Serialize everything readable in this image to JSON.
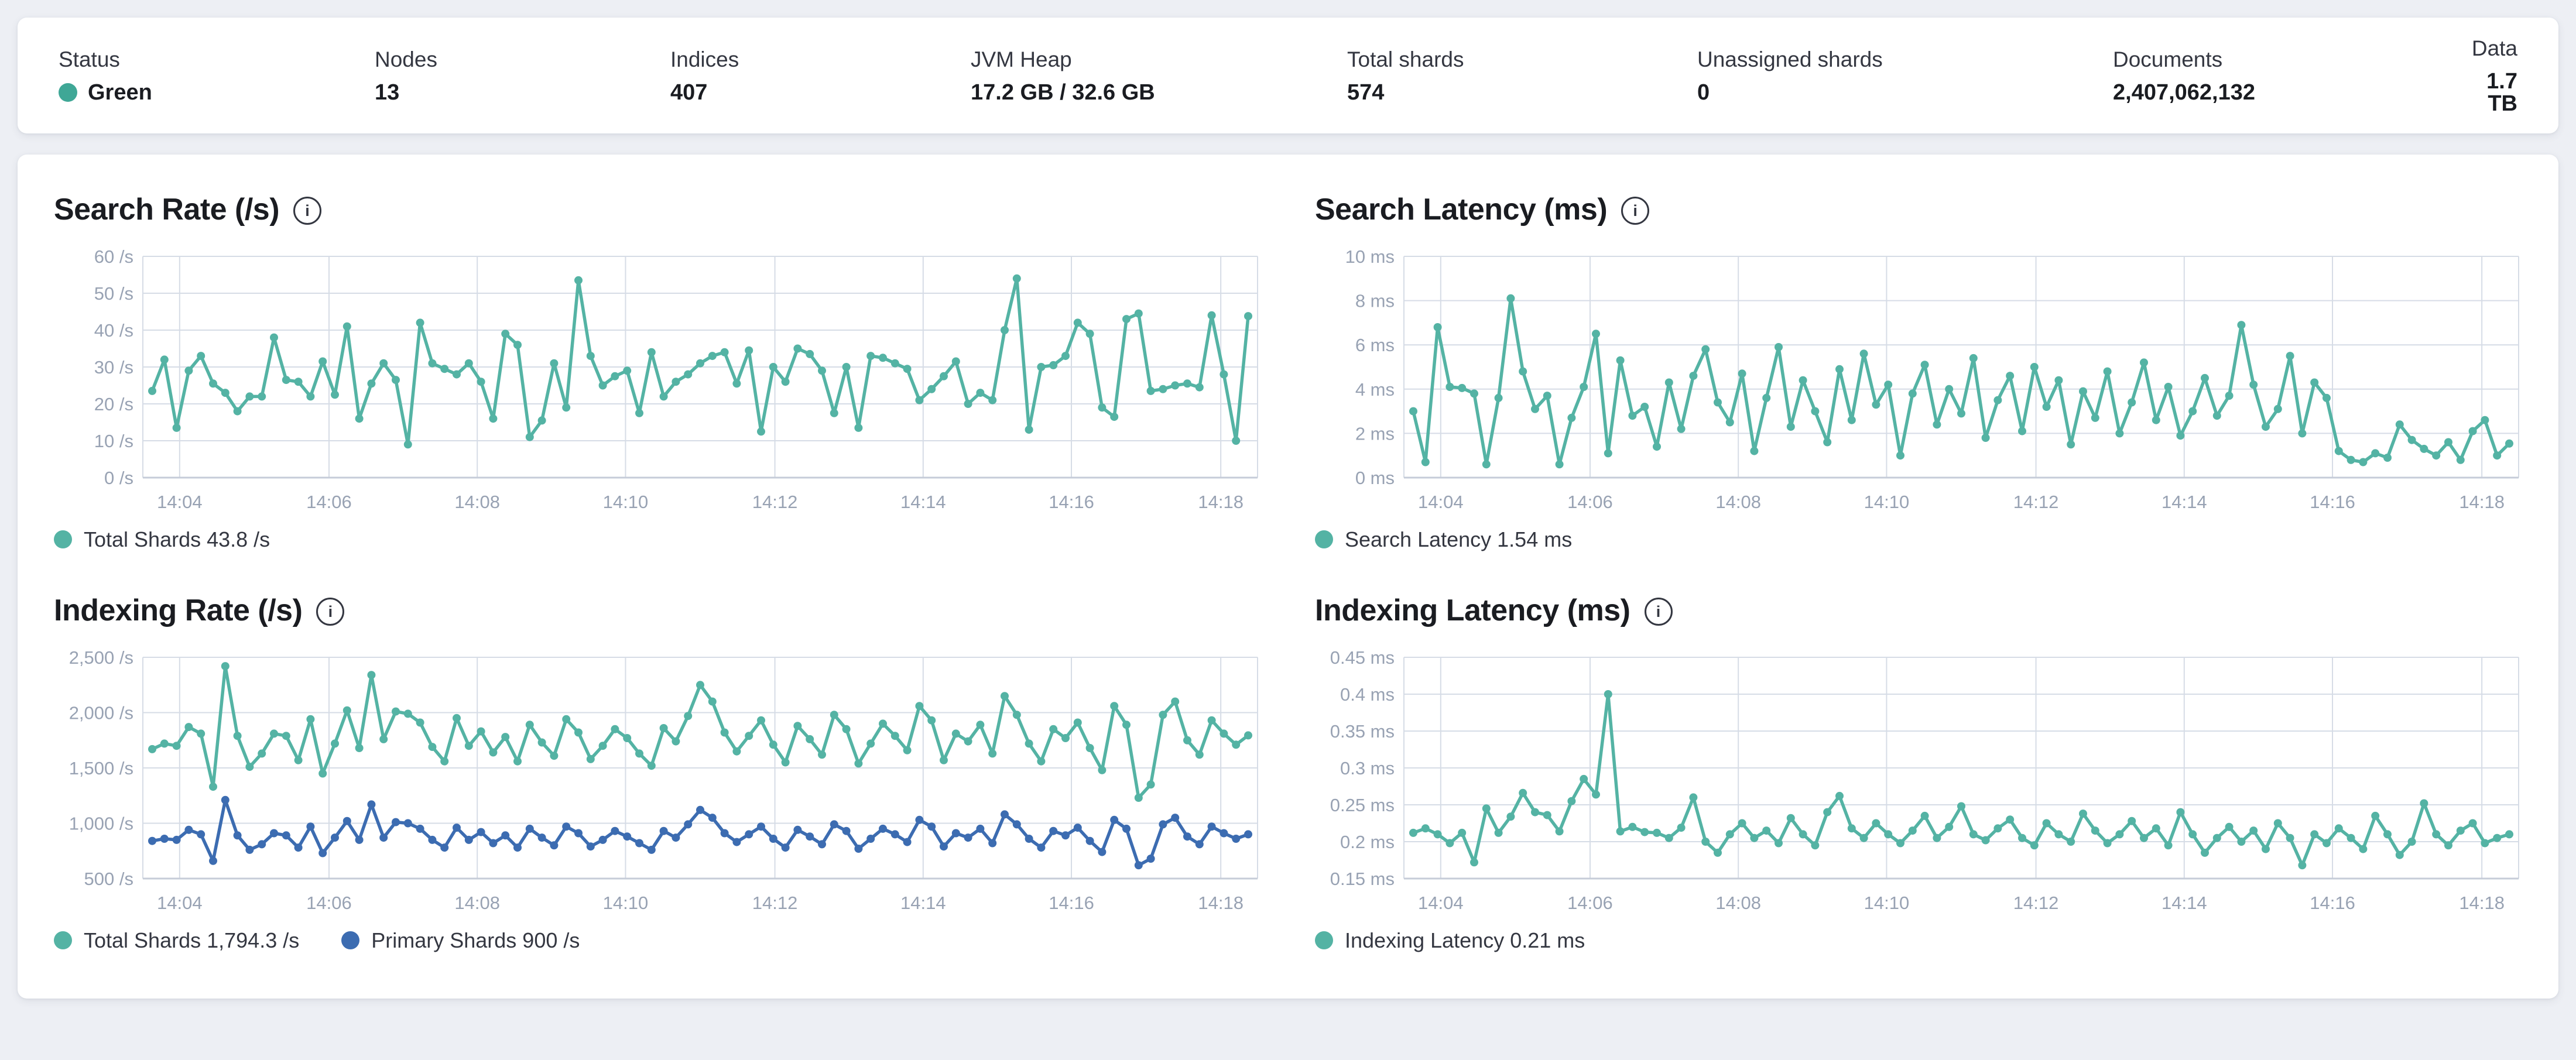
{
  "icons": {
    "info": "i"
  },
  "colors": {
    "teal": "#54b3a4",
    "blue": "#3c6cb1",
    "health_green": "#3fa796",
    "grid": "#d6dce6",
    "axis": "#c6ccd8"
  },
  "stats": {
    "items": [
      {
        "label": "Status",
        "value": "Green"
      },
      {
        "label": "Nodes",
        "value": "13"
      },
      {
        "label": "Indices",
        "value": "407"
      },
      {
        "label": "JVM Heap",
        "value": "17.2 GB / 32.6 GB"
      },
      {
        "label": "Total shards",
        "value": "574"
      },
      {
        "label": "Unassigned shards",
        "value": "0"
      },
      {
        "label": "Documents",
        "value": "2,407,062,132"
      },
      {
        "label": "Data",
        "value": "1.7 TB"
      }
    ]
  },
  "charts": [
    {
      "title": "Search Rate (/s)",
      "type": "line",
      "ylim": [
        0,
        60
      ],
      "y_ticks": [
        {
          "v": 0,
          "label": "0 /s"
        },
        {
          "v": 10,
          "label": "10 /s"
        },
        {
          "v": 20,
          "label": "20 /s"
        },
        {
          "v": 30,
          "label": "30 /s"
        },
        {
          "v": 40,
          "label": "40 /s"
        },
        {
          "v": 50,
          "label": "50 /s"
        },
        {
          "v": 60,
          "label": "60 /s"
        }
      ],
      "x_ticks": {
        "labels": [
          "14:04",
          "14:06",
          "14:08",
          "14:10",
          "14:12",
          "14:14",
          "14:16",
          "14:18"
        ],
        "fracs": [
          0.033,
          0.167,
          0.3,
          0.433,
          0.567,
          0.7,
          0.833,
          0.967
        ]
      },
      "series": [
        {
          "name": "Total Shards",
          "current": "43.8 /s",
          "color": "#54b3a4",
          "values": [
            23.5,
            32,
            13.5,
            29,
            33,
            25.5,
            23,
            18,
            22,
            22,
            38,
            26.5,
            26,
            22,
            31.5,
            22.5,
            41,
            16,
            25.5,
            31,
            26.5,
            9,
            42,
            31,
            29.5,
            28,
            31,
            26,
            16,
            39,
            36,
            11,
            15.5,
            31,
            19,
            53.5,
            33,
            25,
            27.5,
            29,
            17.5,
            34,
            22,
            26,
            28,
            31,
            33,
            34,
            25.5,
            34.5,
            12.5,
            30,
            26,
            35,
            33.5,
            29,
            17.5,
            30,
            13.5,
            33,
            32.5,
            31,
            29.5,
            21,
            24,
            27.5,
            31.5,
            20,
            23,
            21,
            40,
            54,
            13,
            30,
            30.5,
            33,
            42,
            39,
            19,
            16.5,
            43,
            44.5,
            23.5,
            24,
            25,
            25.5,
            24.5,
            44,
            28,
            10,
            43.8
          ]
        }
      ]
    },
    {
      "title": "Search Latency (ms)",
      "type": "line",
      "ylim": [
        0,
        10
      ],
      "y_ticks": [
        {
          "v": 0,
          "label": "0 ms"
        },
        {
          "v": 2,
          "label": "2 ms"
        },
        {
          "v": 4,
          "label": "4 ms"
        },
        {
          "v": 6,
          "label": "6 ms"
        },
        {
          "v": 8,
          "label": "8 ms"
        },
        {
          "v": 10,
          "label": "10 ms"
        }
      ],
      "x_ticks": {
        "labels": [
          "14:04",
          "14:06",
          "14:08",
          "14:10",
          "14:12",
          "14:14",
          "14:16",
          "14:18"
        ],
        "fracs": [
          0.033,
          0.167,
          0.3,
          0.433,
          0.567,
          0.7,
          0.833,
          0.967
        ]
      },
      "series": [
        {
          "name": "Search Latency",
          "current": "1.54 ms",
          "color": "#54b3a4",
          "values": [
            3.0,
            0.7,
            6.8,
            4.1,
            4.05,
            3.8,
            0.6,
            3.6,
            8.1,
            4.8,
            3.1,
            3.7,
            0.6,
            2.7,
            4.1,
            6.5,
            1.1,
            5.3,
            2.8,
            3.2,
            1.4,
            4.3,
            2.2,
            4.6,
            5.8,
            3.4,
            2.5,
            4.7,
            1.2,
            3.6,
            5.9,
            2.3,
            4.4,
            3.0,
            1.6,
            4.9,
            2.6,
            5.6,
            3.3,
            4.2,
            1.0,
            3.8,
            5.1,
            2.4,
            4.0,
            2.9,
            5.4,
            1.8,
            3.5,
            4.6,
            2.1,
            5.0,
            3.2,
            4.4,
            1.5,
            3.9,
            2.7,
            4.8,
            2.0,
            3.4,
            5.2,
            2.6,
            4.1,
            1.9,
            3.0,
            4.5,
            2.8,
            3.7,
            6.9,
            4.2,
            2.3,
            3.1,
            5.5,
            2.0,
            4.3,
            3.6,
            1.2,
            0.8,
            0.7,
            1.1,
            0.9,
            2.4,
            1.7,
            1.3,
            1.0,
            1.6,
            0.8,
            2.1,
            2.6,
            1.0,
            1.54
          ]
        }
      ]
    },
    {
      "title": "Indexing Rate (/s)",
      "type": "line",
      "ylim": [
        500,
        2500
      ],
      "y_ticks": [
        {
          "v": 500,
          "label": "500 /s"
        },
        {
          "v": 1000,
          "label": "1,000 /s"
        },
        {
          "v": 1500,
          "label": "1,500 /s"
        },
        {
          "v": 2000,
          "label": "2,000 /s"
        },
        {
          "v": 2500,
          "label": "2,500 /s"
        }
      ],
      "x_ticks": {
        "labels": [
          "14:04",
          "14:06",
          "14:08",
          "14:10",
          "14:12",
          "14:14",
          "14:16",
          "14:18"
        ],
        "fracs": [
          0.033,
          0.167,
          0.3,
          0.433,
          0.567,
          0.7,
          0.833,
          0.967
        ]
      },
      "series": [
        {
          "name": "Total Shards",
          "current": "1,794.3 /s",
          "color": "#54b3a4",
          "values": [
            1670,
            1720,
            1700,
            1870,
            1810,
            1330,
            2420,
            1790,
            1510,
            1630,
            1810,
            1790,
            1570,
            1940,
            1450,
            1720,
            2020,
            1680,
            2340,
            1760,
            2010,
            1990,
            1910,
            1690,
            1560,
            1950,
            1700,
            1830,
            1640,
            1780,
            1560,
            1890,
            1730,
            1610,
            1940,
            1820,
            1580,
            1700,
            1850,
            1770,
            1630,
            1520,
            1860,
            1740,
            1970,
            2250,
            2100,
            1820,
            1650,
            1790,
            1930,
            1710,
            1550,
            1880,
            1760,
            1620,
            1980,
            1850,
            1540,
            1720,
            1900,
            1790,
            1660,
            2060,
            1930,
            1570,
            1810,
            1740,
            1890,
            1630,
            2150,
            1980,
            1720,
            1560,
            1850,
            1770,
            1910,
            1680,
            1480,
            2060,
            1890,
            1230,
            1350,
            1980,
            2100,
            1750,
            1620,
            1930,
            1810,
            1710,
            1794.3
          ]
        },
        {
          "name": "Primary Shards",
          "current": "900 /s",
          "color": "#3c6cb1",
          "values": [
            840,
            860,
            850,
            940,
            900,
            660,
            1210,
            890,
            760,
            810,
            910,
            890,
            780,
            970,
            730,
            870,
            1020,
            850,
            1170,
            870,
            1010,
            1000,
            950,
            850,
            780,
            960,
            850,
            920,
            820,
            890,
            780,
            950,
            870,
            800,
            970,
            910,
            790,
            850,
            930,
            880,
            820,
            760,
            930,
            870,
            990,
            1120,
            1050,
            910,
            830,
            900,
            970,
            860,
            780,
            940,
            880,
            810,
            990,
            930,
            770,
            860,
            950,
            900,
            830,
            1030,
            970,
            790,
            910,
            870,
            950,
            820,
            1080,
            990,
            860,
            780,
            930,
            890,
            960,
            840,
            740,
            1030,
            950,
            620,
            680,
            990,
            1050,
            880,
            810,
            970,
            910,
            860,
            900
          ]
        }
      ]
    },
    {
      "title": "Indexing Latency (ms)",
      "type": "line",
      "ylim": [
        0.15,
        0.45
      ],
      "y_ticks": [
        {
          "v": 0.15,
          "label": "0.15 ms"
        },
        {
          "v": 0.2,
          "label": "0.2 ms"
        },
        {
          "v": 0.25,
          "label": "0.25 ms"
        },
        {
          "v": 0.3,
          "label": "0.3 ms"
        },
        {
          "v": 0.35,
          "label": "0.35 ms"
        },
        {
          "v": 0.4,
          "label": "0.4 ms"
        },
        {
          "v": 0.45,
          "label": "0.45 ms"
        }
      ],
      "x_ticks": {
        "labels": [
          "14:04",
          "14:06",
          "14:08",
          "14:10",
          "14:12",
          "14:14",
          "14:16",
          "14:18"
        ],
        "fracs": [
          0.033,
          0.167,
          0.3,
          0.433,
          0.567,
          0.7,
          0.833,
          0.967
        ]
      },
      "series": [
        {
          "name": "Indexing Latency",
          "current": "0.21 ms",
          "color": "#54b3a4",
          "values": [
            0.212,
            0.218,
            0.21,
            0.198,
            0.212,
            0.172,
            0.245,
            0.212,
            0.234,
            0.266,
            0.24,
            0.236,
            0.214,
            0.255,
            0.285,
            0.264,
            0.4,
            0.214,
            0.22,
            0.213,
            0.212,
            0.205,
            0.219,
            0.26,
            0.2,
            0.185,
            0.21,
            0.225,
            0.205,
            0.215,
            0.198,
            0.232,
            0.21,
            0.195,
            0.24,
            0.262,
            0.218,
            0.205,
            0.225,
            0.21,
            0.198,
            0.215,
            0.235,
            0.205,
            0.22,
            0.248,
            0.21,
            0.202,
            0.218,
            0.23,
            0.205,
            0.195,
            0.225,
            0.21,
            0.2,
            0.238,
            0.215,
            0.198,
            0.21,
            0.228,
            0.205,
            0.218,
            0.195,
            0.24,
            0.21,
            0.185,
            0.205,
            0.22,
            0.2,
            0.215,
            0.19,
            0.225,
            0.205,
            0.168,
            0.21,
            0.198,
            0.218,
            0.205,
            0.19,
            0.235,
            0.21,
            0.182,
            0.2,
            0.252,
            0.21,
            0.195,
            0.215,
            0.225,
            0.198,
            0.205,
            0.21
          ]
        }
      ]
    }
  ],
  "chart_data": [
    {
      "type": "line",
      "title": "Search Rate (/s)",
      "ylabel": "/s",
      "ylim": [
        0,
        60
      ],
      "x": [
        "14:04",
        "14:06",
        "14:08",
        "14:10",
        "14:12",
        "14:14",
        "14:16",
        "14:18"
      ],
      "legend": [
        "Total Shards 43.8 /s"
      ],
      "legend_position": "bottom",
      "grid": true
    },
    {
      "type": "line",
      "title": "Search Latency (ms)",
      "ylabel": "ms",
      "ylim": [
        0,
        10
      ],
      "x": [
        "14:04",
        "14:06",
        "14:08",
        "14:10",
        "14:12",
        "14:14",
        "14:16",
        "14:18"
      ],
      "legend": [
        "Search Latency 1.54 ms"
      ],
      "legend_position": "bottom",
      "grid": true
    },
    {
      "type": "line",
      "title": "Indexing Rate (/s)",
      "ylabel": "/s",
      "ylim": [
        500,
        2500
      ],
      "x": [
        "14:04",
        "14:06",
        "14:08",
        "14:10",
        "14:12",
        "14:14",
        "14:16",
        "14:18"
      ],
      "legend": [
        "Total Shards 1,794.3 /s",
        "Primary Shards 900 /s"
      ],
      "legend_position": "bottom",
      "grid": true
    },
    {
      "type": "line",
      "title": "Indexing Latency (ms)",
      "ylabel": "ms",
      "ylim": [
        0.15,
        0.45
      ],
      "x": [
        "14:04",
        "14:06",
        "14:08",
        "14:10",
        "14:12",
        "14:14",
        "14:16",
        "14:18"
      ],
      "legend": [
        "Indexing Latency 0.21 ms"
      ],
      "legend_position": "bottom",
      "grid": true
    }
  ]
}
